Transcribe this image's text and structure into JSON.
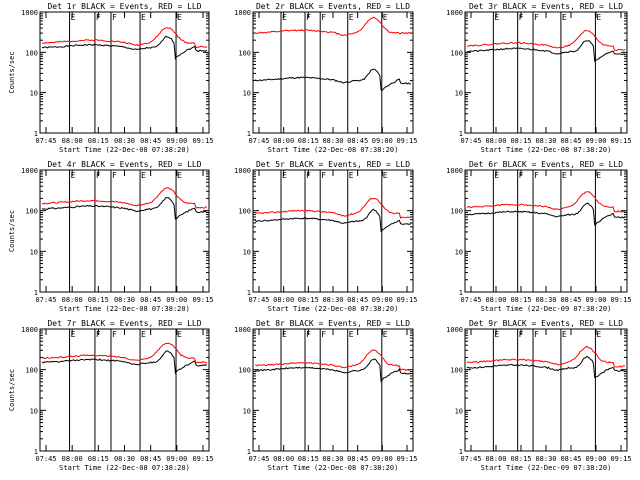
{
  "chart_data": [
    {
      "type": "line",
      "title": "Det 1r BLACK = Events, RED = LLD",
      "ylabel": "Counts/sec",
      "xlabel": "Start Time (22-Dec-08 07:38:20)",
      "ylim": [
        1,
        1000
      ],
      "yscale": "log",
      "xticks": [
        "07:45",
        "08:00",
        "08:15",
        "08:30",
        "08:45",
        "09:00",
        "09:15"
      ],
      "yticks": [
        "1",
        "10",
        "100",
        "1000"
      ],
      "markers": [
        "E",
        "F",
        "F",
        "E",
        "E"
      ],
      "series": [
        {
          "name": "Events",
          "color": "#000000",
          "level": 130,
          "lld": false,
          "dip": true
        },
        {
          "name": "LLD",
          "color": "#ff0000",
          "level": 170,
          "lld": true,
          "dip": true
        }
      ]
    },
    {
      "type": "line",
      "title": "Det 2r BLACK = Events, RED = LLD",
      "ylabel": "",
      "xlabel": "Start Time (22-Dec-08 07:38:20)",
      "ylim": [
        1,
        1000
      ],
      "yscale": "log",
      "xticks": [
        "07:45",
        "08:00",
        "08:15",
        "08:30",
        "08:45",
        "09:00",
        "09:15"
      ],
      "yticks": [
        "1",
        "10",
        "100",
        "1000"
      ],
      "markers": [
        "E",
        "F",
        "F",
        "E",
        "E"
      ],
      "series": [
        {
          "name": "Events",
          "color": "#000000",
          "level": 20,
          "lld": false,
          "dip": true
        },
        {
          "name": "LLD",
          "color": "#ff0000",
          "level": 300,
          "lld": true,
          "dip": false
        }
      ]
    },
    {
      "type": "line",
      "title": "Det 3r BLACK = Events, RED = LLD",
      "ylabel": "",
      "xlabel": "Start Time (22-Dec-08 07:38:20)",
      "ylim": [
        1,
        1000
      ],
      "yscale": "log",
      "xticks": [
        "07:45",
        "08:00",
        "08:15",
        "08:30",
        "08:45",
        "09:00",
        "09:15"
      ],
      "yticks": [
        "1",
        "10",
        "100",
        "1000"
      ],
      "markers": [
        "E",
        "F",
        "F",
        "E",
        "E"
      ],
      "series": [
        {
          "name": "Events",
          "color": "#000000",
          "level": 105,
          "lld": false,
          "dip": true
        },
        {
          "name": "LLD",
          "color": "#ff0000",
          "level": 145,
          "lld": true,
          "dip": true
        }
      ]
    },
    {
      "type": "line",
      "title": "Det 4r BLACK = Events, RED = LLD",
      "ylabel": "Counts/sec",
      "xlabel": "Start Time (22-Dec-08 07:38:20)",
      "ylim": [
        1,
        1000
      ],
      "yscale": "log",
      "xticks": [
        "07:45",
        "08:00",
        "08:15",
        "08:30",
        "08:45",
        "09:00",
        "09:15"
      ],
      "yticks": [
        "1",
        "10",
        "100",
        "1000"
      ],
      "markers": [
        "E",
        "F",
        "F",
        "E",
        "E"
      ],
      "series": [
        {
          "name": "Events",
          "color": "#000000",
          "level": 110,
          "lld": false,
          "dip": true
        },
        {
          "name": "LLD",
          "color": "#ff0000",
          "level": 150,
          "lld": true,
          "dip": true
        }
      ]
    },
    {
      "type": "line",
      "title": "Det 5r BLACK = Events, RED = LLD",
      "ylabel": "",
      "xlabel": "Start Time (22-Dec-08 07:38:20)",
      "ylim": [
        1,
        1000
      ],
      "yscale": "log",
      "xticks": [
        "07:45",
        "08:00",
        "08:15",
        "08:30",
        "08:45",
        "09:00",
        "09:15"
      ],
      "yticks": [
        "1",
        "10",
        "100",
        "1000"
      ],
      "markers": [
        "E",
        "F",
        "F",
        "E",
        "E"
      ],
      "series": [
        {
          "name": "Events",
          "color": "#000000",
          "level": 55,
          "lld": false,
          "dip": true
        },
        {
          "name": "LLD",
          "color": "#ff0000",
          "level": 85,
          "lld": true,
          "dip": true
        }
      ]
    },
    {
      "type": "line",
      "title": "Det 6r BLACK = Events, RED = LLD",
      "ylabel": "",
      "xlabel": "Start Time (22-Dec-09 07:38:20)",
      "ylim": [
        1,
        1000
      ],
      "yscale": "log",
      "xticks": [
        "07:45",
        "08:00",
        "08:15",
        "08:30",
        "08:45",
        "09:00",
        "09:15"
      ],
      "yticks": [
        "1",
        "10",
        "100",
        "1000"
      ],
      "markers": [
        "E",
        "F",
        "F",
        "E",
        "E"
      ],
      "series": [
        {
          "name": "Events",
          "color": "#000000",
          "level": 80,
          "lld": false,
          "dip": true
        },
        {
          "name": "LLD",
          "color": "#ff0000",
          "level": 120,
          "lld": true,
          "dip": true
        }
      ]
    },
    {
      "type": "line",
      "title": "Det 7r BLACK = Events, RED = LLD",
      "ylabel": "Counts/sec",
      "xlabel": "Start Time (22-Dec-08 07:38:20)",
      "ylim": [
        1,
        1000
      ],
      "yscale": "log",
      "xticks": [
        "07:45",
        "08:00",
        "08:15",
        "08:30",
        "08:45",
        "09:00",
        "09:15"
      ],
      "yticks": [
        "1",
        "10",
        "100",
        "1000"
      ],
      "markers": [
        "E",
        "F",
        "F",
        "E",
        "E"
      ],
      "series": [
        {
          "name": "Events",
          "color": "#000000",
          "level": 150,
          "lld": false,
          "dip": true
        },
        {
          "name": "LLD",
          "color": "#ff0000",
          "level": 190,
          "lld": true,
          "dip": true
        }
      ]
    },
    {
      "type": "line",
      "title": "Det 8r BLACK = Events, RED = LLD",
      "ylabel": "",
      "xlabel": "Start Time (22-Dec-08 07:38:20)",
      "ylim": [
        1,
        1000
      ],
      "yscale": "log",
      "xticks": [
        "07:45",
        "08:00",
        "08:15",
        "08:30",
        "08:45",
        "09:00",
        "09:15"
      ],
      "yticks": [
        "1",
        "10",
        "100",
        "1000"
      ],
      "markers": [
        "E",
        "F",
        "F",
        "E",
        "E"
      ],
      "series": [
        {
          "name": "Events",
          "color": "#000000",
          "level": 95,
          "lld": false,
          "dip": true
        },
        {
          "name": "LLD",
          "color": "#ff0000",
          "level": 125,
          "lld": true,
          "dip": true
        }
      ]
    },
    {
      "type": "line",
      "title": "Det 9r BLACK = Events, RED = LLD",
      "ylabel": "",
      "xlabel": "Start Time (22-Dec-09 07:38:20)",
      "ylim": [
        1,
        1000
      ],
      "yscale": "log",
      "xticks": [
        "07:45",
        "08:00",
        "08:15",
        "08:30",
        "08:45",
        "09:00",
        "09:15"
      ],
      "yticks": [
        "1",
        "10",
        "100",
        "1000"
      ],
      "markers": [
        "E",
        "F",
        "F",
        "E",
        "E"
      ],
      "series": [
        {
          "name": "Events",
          "color": "#000000",
          "level": 110,
          "lld": false,
          "dip": true
        },
        {
          "name": "LLD",
          "color": "#ff0000",
          "level": 150,
          "lld": true,
          "dip": true
        }
      ]
    }
  ]
}
